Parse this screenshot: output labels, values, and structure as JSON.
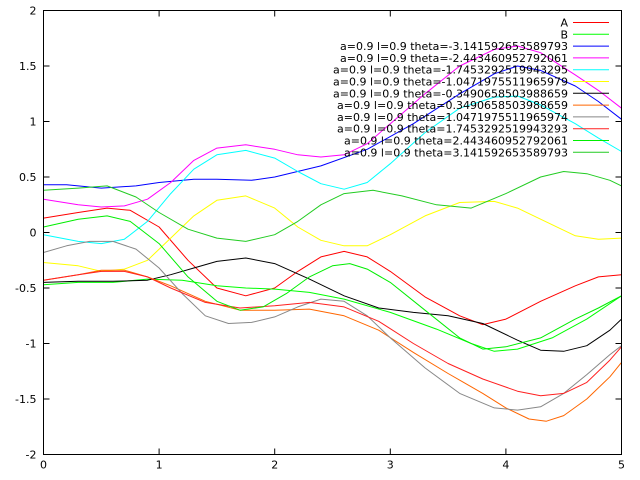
{
  "chart_data": {
    "type": "line",
    "title": "",
    "xlabel": "",
    "ylabel": "",
    "xlim": [
      0,
      5
    ],
    "ylim": [
      -2,
      2
    ],
    "x_ticks": [
      "0",
      "1",
      "2",
      "3",
      "4",
      "5"
    ],
    "y_ticks": [
      "-2",
      "-1.5",
      "-1",
      "-0.5",
      "0",
      "0.5",
      "1",
      "1.5",
      "2"
    ],
    "grid": false,
    "legend_position": "top-right",
    "series": [
      {
        "name": "A",
        "color": "#ff0000",
        "points": [
          [
            0,
            0.13
          ],
          [
            0.3,
            0.18
          ],
          [
            0.55,
            0.22
          ],
          [
            0.75,
            0.2
          ],
          [
            1.0,
            0.05
          ],
          [
            1.25,
            -0.25
          ],
          [
            1.5,
            -0.5
          ],
          [
            1.75,
            -0.57
          ],
          [
            2.0,
            -0.5
          ],
          [
            2.2,
            -0.35
          ],
          [
            2.4,
            -0.22
          ],
          [
            2.6,
            -0.17
          ],
          [
            2.8,
            -0.22
          ],
          [
            3.0,
            -0.35
          ],
          [
            3.3,
            -0.58
          ],
          [
            3.6,
            -0.75
          ],
          [
            3.8,
            -0.83
          ],
          [
            4.0,
            -0.78
          ],
          [
            4.3,
            -0.62
          ],
          [
            4.6,
            -0.48
          ],
          [
            4.8,
            -0.4
          ],
          [
            5.0,
            -0.38
          ]
        ]
      },
      {
        "name": "B",
        "color": "#00ff00",
        "points": [
          [
            0,
            -0.47
          ],
          [
            0.3,
            -0.45
          ],
          [
            0.6,
            -0.45
          ],
          [
            0.9,
            -0.42
          ],
          [
            1.2,
            -0.43
          ],
          [
            1.5,
            -0.48
          ],
          [
            1.75,
            -0.5
          ],
          [
            2.0,
            -0.51
          ],
          [
            2.3,
            -0.54
          ],
          [
            2.6,
            -0.6
          ],
          [
            3.0,
            -0.72
          ],
          [
            3.4,
            -0.87
          ],
          [
            3.7,
            -1.0
          ],
          [
            3.9,
            -1.07
          ],
          [
            4.1,
            -1.05
          ],
          [
            4.4,
            -0.95
          ],
          [
            4.7,
            -0.78
          ],
          [
            5.0,
            -0.57
          ]
        ]
      },
      {
        "name": "a=0.9 l=0.9 theta=-3.141592653589793",
        "color": "#0000ff",
        "points": [
          [
            0,
            0.43
          ],
          [
            0.2,
            0.43
          ],
          [
            0.5,
            0.4
          ],
          [
            0.8,
            0.42
          ],
          [
            1.0,
            0.45
          ],
          [
            1.3,
            0.48
          ],
          [
            1.5,
            0.48
          ],
          [
            1.8,
            0.47
          ],
          [
            2.0,
            0.5
          ],
          [
            2.4,
            0.6
          ],
          [
            2.8,
            0.75
          ],
          [
            3.2,
            0.98
          ],
          [
            3.6,
            1.25
          ],
          [
            3.9,
            1.43
          ],
          [
            4.1,
            1.5
          ],
          [
            4.3,
            1.46
          ],
          [
            4.6,
            1.32
          ],
          [
            4.8,
            1.18
          ],
          [
            5.0,
            1.02
          ]
        ]
      },
      {
        "name": "a=0.9 l=0.9 theta=-2.443460952792061",
        "color": "#ff00ff",
        "points": [
          [
            0,
            0.3
          ],
          [
            0.3,
            0.25
          ],
          [
            0.5,
            0.23
          ],
          [
            0.7,
            0.24
          ],
          [
            0.9,
            0.3
          ],
          [
            1.1,
            0.45
          ],
          [
            1.3,
            0.65
          ],
          [
            1.5,
            0.76
          ],
          [
            1.75,
            0.79
          ],
          [
            2.0,
            0.75
          ],
          [
            2.2,
            0.7
          ],
          [
            2.4,
            0.68
          ],
          [
            2.6,
            0.7
          ],
          [
            2.8,
            0.8
          ],
          [
            3.0,
            0.98
          ],
          [
            3.3,
            1.25
          ],
          [
            3.6,
            1.5
          ],
          [
            3.9,
            1.65
          ],
          [
            4.1,
            1.68
          ],
          [
            4.3,
            1.62
          ],
          [
            4.6,
            1.42
          ],
          [
            4.8,
            1.28
          ],
          [
            5.0,
            1.12
          ]
        ]
      },
      {
        "name": "a=0.9 l=0.9 theta=-1.7453292519943295",
        "color": "#00ffff",
        "points": [
          [
            0,
            -0.02
          ],
          [
            0.3,
            -0.08
          ],
          [
            0.5,
            -0.1
          ],
          [
            0.7,
            -0.06
          ],
          [
            0.9,
            0.1
          ],
          [
            1.1,
            0.35
          ],
          [
            1.3,
            0.57
          ],
          [
            1.5,
            0.7
          ],
          [
            1.75,
            0.74
          ],
          [
            2.0,
            0.67
          ],
          [
            2.2,
            0.55
          ],
          [
            2.4,
            0.44
          ],
          [
            2.6,
            0.39
          ],
          [
            2.8,
            0.45
          ],
          [
            3.0,
            0.62
          ],
          [
            3.3,
            0.9
          ],
          [
            3.6,
            1.12
          ],
          [
            3.9,
            1.22
          ],
          [
            4.1,
            1.23
          ],
          [
            4.3,
            1.15
          ],
          [
            4.6,
            0.98
          ],
          [
            4.8,
            0.85
          ],
          [
            5.0,
            0.73
          ]
        ]
      },
      {
        "name": "a=0.9 l=0.9 theta=-1.0471975511965979",
        "color": "#ffff00",
        "points": [
          [
            0,
            -0.27
          ],
          [
            0.3,
            -0.3
          ],
          [
            0.5,
            -0.35
          ],
          [
            0.7,
            -0.33
          ],
          [
            0.9,
            -0.25
          ],
          [
            1.1,
            -0.05
          ],
          [
            1.3,
            0.15
          ],
          [
            1.5,
            0.29
          ],
          [
            1.75,
            0.33
          ],
          [
            2.0,
            0.22
          ],
          [
            2.2,
            0.05
          ],
          [
            2.4,
            -0.07
          ],
          [
            2.6,
            -0.12
          ],
          [
            2.8,
            -0.12
          ],
          [
            3.0,
            -0.02
          ],
          [
            3.3,
            0.15
          ],
          [
            3.6,
            0.27
          ],
          [
            3.9,
            0.28
          ],
          [
            4.1,
            0.22
          ],
          [
            4.3,
            0.12
          ],
          [
            4.6,
            -0.03
          ],
          [
            4.8,
            -0.06
          ],
          [
            5.0,
            -0.05
          ]
        ]
      },
      {
        "name": "a=0.9 l=0.9 theta=-0.3490658503988659",
        "color": "#000000",
        "points": [
          [
            0,
            -0.45
          ],
          [
            0.3,
            -0.44
          ],
          [
            0.6,
            -0.44
          ],
          [
            0.9,
            -0.43
          ],
          [
            1.1,
            -0.38
          ],
          [
            1.3,
            -0.32
          ],
          [
            1.5,
            -0.26
          ],
          [
            1.75,
            -0.23
          ],
          [
            2.0,
            -0.28
          ],
          [
            2.3,
            -0.42
          ],
          [
            2.6,
            -0.57
          ],
          [
            2.9,
            -0.68
          ],
          [
            3.2,
            -0.72
          ],
          [
            3.5,
            -0.75
          ],
          [
            3.8,
            -0.82
          ],
          [
            4.1,
            -0.97
          ],
          [
            4.3,
            -1.06
          ],
          [
            4.5,
            -1.07
          ],
          [
            4.7,
            -1.02
          ],
          [
            4.9,
            -0.88
          ],
          [
            5.0,
            -0.78
          ]
        ]
      },
      {
        "name": "a=0.9 l=0.9 theta=0.3490658503988659",
        "color": "#ff6600",
        "points": [
          [
            0,
            -0.43
          ],
          [
            0.3,
            -0.38
          ],
          [
            0.5,
            -0.34
          ],
          [
            0.7,
            -0.34
          ],
          [
            0.9,
            -0.4
          ],
          [
            1.1,
            -0.48
          ],
          [
            1.4,
            -0.62
          ],
          [
            1.7,
            -0.7
          ],
          [
            2.0,
            -0.7
          ],
          [
            2.3,
            -0.69
          ],
          [
            2.6,
            -0.75
          ],
          [
            2.9,
            -0.88
          ],
          [
            3.2,
            -1.08
          ],
          [
            3.5,
            -1.27
          ],
          [
            3.8,
            -1.45
          ],
          [
            4.0,
            -1.58
          ],
          [
            4.2,
            -1.68
          ],
          [
            4.35,
            -1.7
          ],
          [
            4.5,
            -1.65
          ],
          [
            4.7,
            -1.5
          ],
          [
            4.9,
            -1.3
          ],
          [
            5.0,
            -1.17
          ]
        ]
      },
      {
        "name": "a=0.9 l=0.9 theta=1.0471975511965974",
        "color": "#888888",
        "points": [
          [
            0,
            -0.18
          ],
          [
            0.2,
            -0.12
          ],
          [
            0.4,
            -0.08
          ],
          [
            0.6,
            -0.08
          ],
          [
            0.8,
            -0.15
          ],
          [
            1.0,
            -0.32
          ],
          [
            1.2,
            -0.55
          ],
          [
            1.4,
            -0.75
          ],
          [
            1.6,
            -0.82
          ],
          [
            1.8,
            -0.81
          ],
          [
            2.0,
            -0.76
          ],
          [
            2.2,
            -0.67
          ],
          [
            2.4,
            -0.6
          ],
          [
            2.6,
            -0.62
          ],
          [
            2.8,
            -0.75
          ],
          [
            3.0,
            -0.95
          ],
          [
            3.3,
            -1.22
          ],
          [
            3.6,
            -1.45
          ],
          [
            3.9,
            -1.58
          ],
          [
            4.1,
            -1.6
          ],
          [
            4.3,
            -1.57
          ],
          [
            4.5,
            -1.45
          ],
          [
            4.7,
            -1.28
          ],
          [
            4.9,
            -1.1
          ],
          [
            5.0,
            -1.02
          ]
        ]
      },
      {
        "name": "a=0.9 l=0.9 theta=1.7453292519943293",
        "color": "#ff2020",
        "points": [
          [
            0,
            -0.43
          ],
          [
            0.3,
            -0.38
          ],
          [
            0.5,
            -0.35
          ],
          [
            0.7,
            -0.35
          ],
          [
            0.9,
            -0.4
          ],
          [
            1.1,
            -0.5
          ],
          [
            1.4,
            -0.63
          ],
          [
            1.7,
            -0.68
          ],
          [
            2.0,
            -0.66
          ],
          [
            2.3,
            -0.63
          ],
          [
            2.6,
            -0.67
          ],
          [
            2.9,
            -0.8
          ],
          [
            3.2,
            -1.0
          ],
          [
            3.5,
            -1.18
          ],
          [
            3.8,
            -1.32
          ],
          [
            4.1,
            -1.43
          ],
          [
            4.3,
            -1.47
          ],
          [
            4.5,
            -1.45
          ],
          [
            4.7,
            -1.35
          ],
          [
            4.9,
            -1.15
          ],
          [
            5.0,
            -1.03
          ]
        ]
      },
      {
        "name": "a=0.9 l=0.9 theta=2.443460952792061",
        "color": "#00ee00",
        "points": [
          [
            0,
            0.05
          ],
          [
            0.3,
            0.12
          ],
          [
            0.55,
            0.15
          ],
          [
            0.75,
            0.1
          ],
          [
            1.0,
            -0.1
          ],
          [
            1.25,
            -0.4
          ],
          [
            1.5,
            -0.62
          ],
          [
            1.7,
            -0.7
          ],
          [
            1.9,
            -0.67
          ],
          [
            2.1,
            -0.55
          ],
          [
            2.3,
            -0.4
          ],
          [
            2.5,
            -0.3
          ],
          [
            2.65,
            -0.28
          ],
          [
            2.8,
            -0.33
          ],
          [
            3.0,
            -0.45
          ],
          [
            3.3,
            -0.7
          ],
          [
            3.6,
            -0.95
          ],
          [
            3.8,
            -1.05
          ],
          [
            4.0,
            -1.03
          ],
          [
            4.3,
            -0.95
          ],
          [
            4.6,
            -0.78
          ],
          [
            4.8,
            -0.68
          ],
          [
            5.0,
            -0.57
          ]
        ]
      },
      {
        "name": "a=0.9 l=0.9 theta=3.141592653589793",
        "color": "#22cc22",
        "points": [
          [
            0,
            0.38
          ],
          [
            0.3,
            0.4
          ],
          [
            0.55,
            0.42
          ],
          [
            0.8,
            0.32
          ],
          [
            1.0,
            0.18
          ],
          [
            1.25,
            0.03
          ],
          [
            1.5,
            -0.05
          ],
          [
            1.75,
            -0.08
          ],
          [
            2.0,
            -0.02
          ],
          [
            2.2,
            0.1
          ],
          [
            2.4,
            0.25
          ],
          [
            2.6,
            0.35
          ],
          [
            2.85,
            0.38
          ],
          [
            3.1,
            0.33
          ],
          [
            3.4,
            0.25
          ],
          [
            3.7,
            0.22
          ],
          [
            4.0,
            0.35
          ],
          [
            4.3,
            0.5
          ],
          [
            4.5,
            0.55
          ],
          [
            4.7,
            0.53
          ],
          [
            4.9,
            0.47
          ],
          [
            5.0,
            0.42
          ]
        ]
      }
    ]
  }
}
